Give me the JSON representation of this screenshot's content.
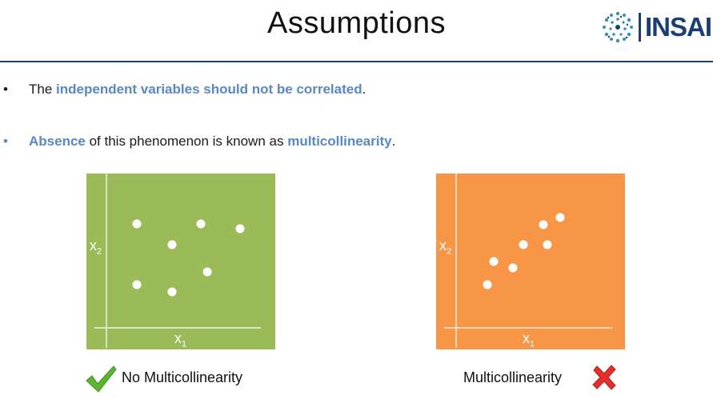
{
  "header": {
    "title": "Assumptions",
    "logo_text": "INSAID"
  },
  "bullets": [
    {
      "marker": "•",
      "parts": [
        {
          "text": "The ",
          "style": "plain"
        },
        {
          "text": "independent variables should not be correlated",
          "style": "highlight"
        },
        {
          "text": ".",
          "style": "plain"
        }
      ]
    },
    {
      "marker": "•",
      "parts": [
        {
          "text": "Absence",
          "style": "highlight"
        },
        {
          "text": " of this phenomenon is known as ",
          "style": "plain"
        },
        {
          "text": "multicollinearity",
          "style": "highlight"
        },
        {
          "text": ".",
          "style": "plain"
        }
      ]
    }
  ],
  "plots": [
    {
      "caption": "No Multicollinearity",
      "status_icon": "checkmark-icon",
      "background_color": "#9bbb59",
      "x_label": "x",
      "x_sub": "1",
      "y_label": "x",
      "y_sub": "2"
    },
    {
      "caption": "Multicollinearity",
      "status_icon": "cross-icon",
      "background_color": "#f79646",
      "x_label": "x",
      "x_sub": "1",
      "y_label": "x",
      "y_sub": "2"
    }
  ],
  "colors": {
    "highlight": "#5b87c5",
    "rule": "#1f3f7a",
    "check": "#5cb531",
    "cross": "#e0302a",
    "logo": "#1c3f73"
  }
}
